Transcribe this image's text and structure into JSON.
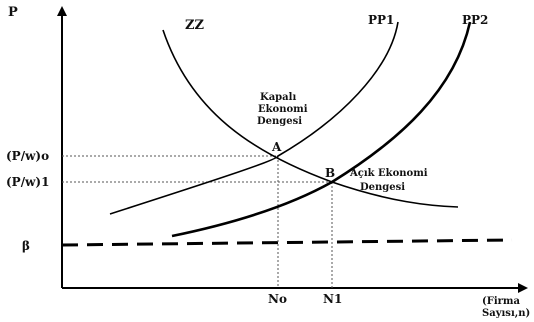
{
  "axes": {
    "y_label": "P",
    "x_label_line1": "(Firma",
    "x_label_line2": "Sayısı,n)"
  },
  "curves": {
    "zz": "ZZ",
    "pp1": "PP1",
    "pp2": "PP2",
    "beta": "β"
  },
  "y_ticks": {
    "p_w_0": "(P/w)o",
    "p_w_1": "(P/w)1"
  },
  "x_ticks": {
    "n0": "No",
    "n1": "N1"
  },
  "points": {
    "a": "A",
    "b": "B"
  },
  "annotations": {
    "closed_line1": "Kapalı",
    "closed_line2": "Ekonomi",
    "closed_line3": "Dengesi",
    "open_line1": "Açık Ekonomi",
    "open_line2": "Dengesi"
  }
}
